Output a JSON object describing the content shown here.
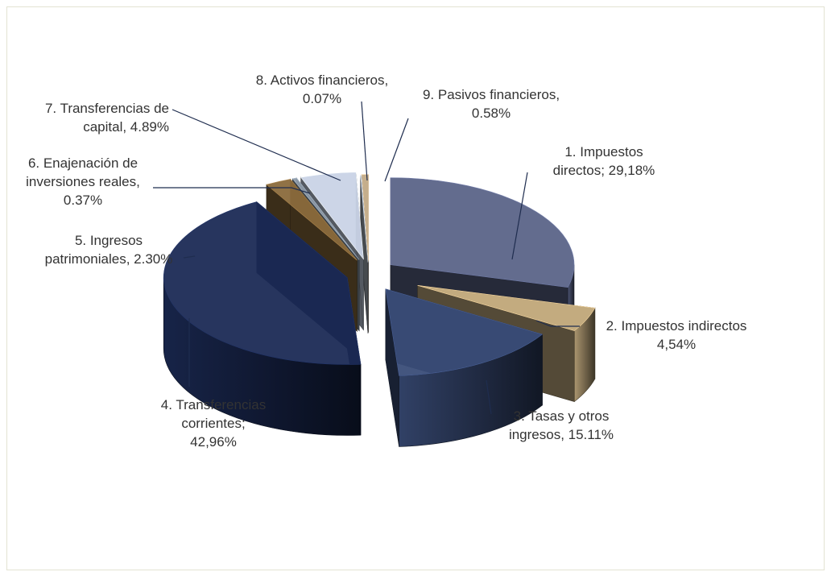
{
  "chart_data": {
    "type": "pie",
    "title": "",
    "style": "3d-exploded",
    "series": [
      {
        "values": [
          29.18,
          4.54,
          15.11,
          42.96,
          2.3,
          0.37,
          4.89,
          0.07,
          0.58
        ],
        "categories": [
          "1. Impuestos directos",
          "2. Impuestos indirectos",
          "3. Tasas y otros ingresos",
          "4. Transferencias corrientes",
          "5. Ingresos patrimoniales",
          "6. Enajenación de inversiones reales",
          "7. Transferencias de capital",
          "8. Activos financieros",
          "9. Pasivos financieros"
        ]
      }
    ],
    "colors": [
      "#5b6488",
      "#c9b083",
      "#3a4d78",
      "#1b2a55",
      "#8a6a3c",
      "#8d9aa8",
      "#c9d3e6",
      "#aab2bd",
      "#c2aa86"
    ],
    "labels": [
      {
        "lines": [
          "1. Impuestos",
          "directos; 29,18%"
        ]
      },
      {
        "lines": [
          "2. Impuestos  indirectos",
          "4,54%"
        ]
      },
      {
        "lines": [
          "3. Tasas y otros",
          "ingresos, 15.11%"
        ]
      },
      {
        "lines": [
          "4. Transferencias",
          "corrientes;",
          "42,96%"
        ]
      },
      {
        "lines": [
          "5. Ingresos",
          "patrimoniales, 2.30%"
        ]
      },
      {
        "lines": [
          "6. Enajenación de",
          "inversiones reales,",
          "0.37%"
        ]
      },
      {
        "lines": [
          "7. Transferencias de",
          "capital, 4.89%"
        ]
      },
      {
        "lines": [
          "8. Activos financieros,",
          "0.07%"
        ]
      },
      {
        "lines": [
          "9. Pasivos financieros,",
          "0.58%"
        ]
      }
    ]
  }
}
